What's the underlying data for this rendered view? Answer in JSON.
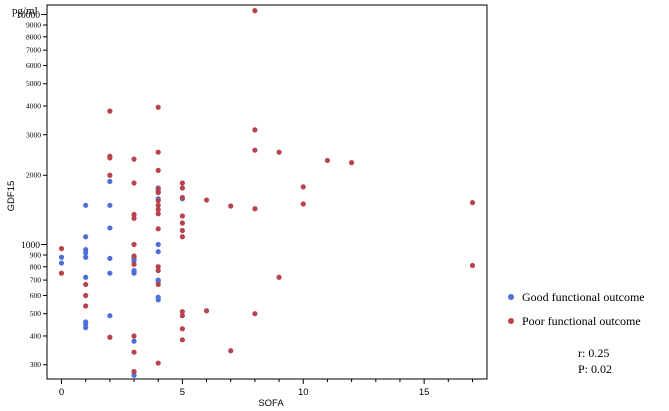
{
  "chart_data": {
    "type": "scatter",
    "ylabel": "GDF15",
    "xlabel": "SOFA",
    "y_unit": "pg/ml",
    "y_scale": "log",
    "xlim": [
      -0.6,
      17.6
    ],
    "ylim": [
      260,
      11000
    ],
    "x_ticks": [
      0,
      5,
      10,
      15
    ],
    "y_ticks_major": [
      1000,
      10000
    ],
    "y_ticks_minor": [
      300,
      400,
      500,
      600,
      700,
      800,
      900,
      2000,
      3000,
      4000,
      5000,
      6000,
      7000,
      8000,
      9000
    ],
    "grid": false,
    "legend_position": "right",
    "series": [
      {
        "name": "Good functional outcome",
        "color": "#4f6fd8",
        "points": [
          [
            0,
            880
          ],
          [
            0,
            830
          ],
          [
            1,
            1480
          ],
          [
            1,
            1080
          ],
          [
            1,
            950
          ],
          [
            1,
            920
          ],
          [
            1,
            880
          ],
          [
            1,
            720
          ],
          [
            1,
            460
          ],
          [
            1,
            450
          ],
          [
            1,
            435
          ],
          [
            2,
            1880
          ],
          [
            2,
            1480
          ],
          [
            2,
            1180
          ],
          [
            2,
            870
          ],
          [
            2,
            750
          ],
          [
            2,
            490
          ],
          [
            3,
            890
          ],
          [
            3,
            870
          ],
          [
            3,
            850
          ],
          [
            3,
            770
          ],
          [
            3,
            760
          ],
          [
            3,
            750
          ],
          [
            3,
            380
          ],
          [
            3,
            280
          ],
          [
            3,
            270
          ],
          [
            4,
            1760
          ],
          [
            4,
            1700
          ],
          [
            4,
            1580
          ],
          [
            4,
            1000
          ],
          [
            4,
            930
          ],
          [
            4,
            700
          ],
          [
            4,
            690
          ],
          [
            4,
            590
          ],
          [
            4,
            575
          ],
          [
            5,
            1580
          ]
        ]
      },
      {
        "name": "Poor functional outcome",
        "color": "#b8434c",
        "points": [
          [
            0,
            960
          ],
          [
            0,
            750
          ],
          [
            1,
            670
          ],
          [
            1,
            600
          ],
          [
            1,
            540
          ],
          [
            2,
            3800
          ],
          [
            2,
            2420
          ],
          [
            2,
            2380
          ],
          [
            2,
            2000
          ],
          [
            2,
            395
          ],
          [
            3,
            2350
          ],
          [
            3,
            1850
          ],
          [
            3,
            1350
          ],
          [
            3,
            1300
          ],
          [
            3,
            1000
          ],
          [
            3,
            890
          ],
          [
            3,
            820
          ],
          [
            3,
            400
          ],
          [
            3,
            340
          ],
          [
            3,
            280
          ],
          [
            4,
            3950
          ],
          [
            4,
            2520
          ],
          [
            4,
            2100
          ],
          [
            4,
            1740
          ],
          [
            4,
            1680
          ],
          [
            4,
            1550
          ],
          [
            4,
            1480
          ],
          [
            4,
            1420
          ],
          [
            4,
            1360
          ],
          [
            4,
            1170
          ],
          [
            4,
            800
          ],
          [
            4,
            770
          ],
          [
            4,
            670
          ],
          [
            4,
            305
          ],
          [
            5,
            1850
          ],
          [
            5,
            1760
          ],
          [
            5,
            1600
          ],
          [
            5,
            1330
          ],
          [
            5,
            1240
          ],
          [
            5,
            1150
          ],
          [
            5,
            1080
          ],
          [
            5,
            510
          ],
          [
            5,
            490
          ],
          [
            5,
            430
          ],
          [
            5,
            385
          ],
          [
            6,
            1560
          ],
          [
            6,
            515
          ],
          [
            7,
            1470
          ],
          [
            7,
            345
          ],
          [
            8,
            10400
          ],
          [
            8,
            3150
          ],
          [
            8,
            2570
          ],
          [
            8,
            1430
          ],
          [
            8,
            500
          ],
          [
            9,
            2520
          ],
          [
            9,
            720
          ],
          [
            10,
            1780
          ],
          [
            10,
            1500
          ],
          [
            11,
            2320
          ],
          [
            12,
            2270
          ],
          [
            17,
            1520
          ],
          [
            17,
            810
          ]
        ]
      }
    ],
    "annotations": {
      "r": "r: 0.25",
      "p": "P: 0.02"
    }
  },
  "legend": {
    "items": [
      {
        "label": "Good functional outcome",
        "color": "#4f6fd8"
      },
      {
        "label": "Poor functional outcome",
        "color": "#b8434c"
      }
    ]
  },
  "stats": {
    "r": "r: 0.25",
    "p": "P: 0.02"
  }
}
